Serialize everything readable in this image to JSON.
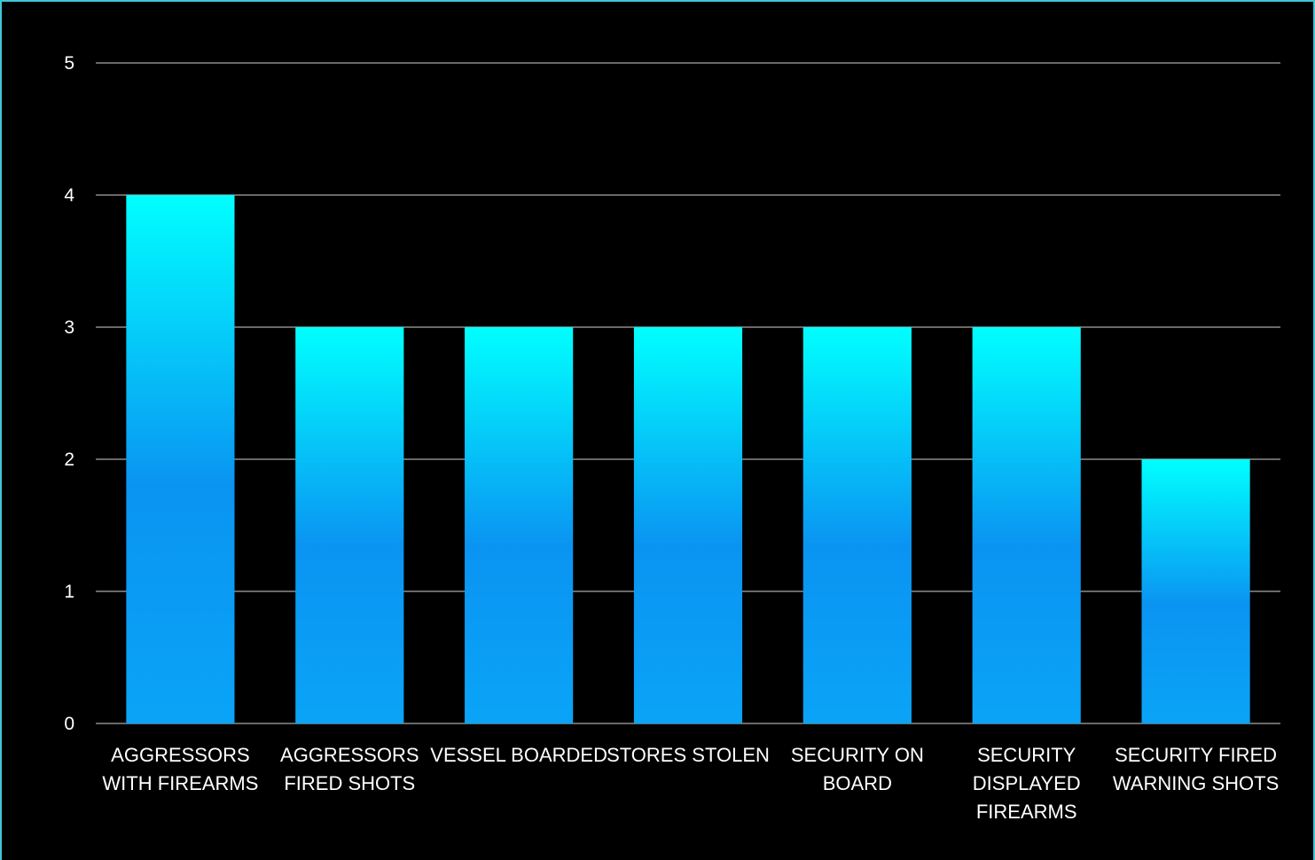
{
  "colors": {
    "background": "#000000",
    "frame": "#3fc6d6",
    "gridline": "#8c8c8c",
    "bar_top": "#00ffff",
    "bar_mid": "#0a94f2",
    "bar_bottom": "#0aa4f7",
    "text": "#ffffff"
  },
  "chart_data": {
    "type": "bar",
    "title": "",
    "xlabel": "",
    "ylabel": "",
    "ylim": [
      0,
      5
    ],
    "yticks": [
      0,
      1,
      2,
      3,
      4,
      5
    ],
    "grid": true,
    "legend": "none",
    "categories": [
      [
        "AGGRESSORS",
        "WITH FIREARMS"
      ],
      [
        "AGGRESSORS",
        "FIRED SHOTS"
      ],
      [
        "VESSEL BOARDED"
      ],
      [
        "STORES STOLEN"
      ],
      [
        "SECURITY ON",
        "BOARD"
      ],
      [
        "SECURITY",
        "DISPLAYED",
        "FIREARMS"
      ],
      [
        "SECURITY FIRED",
        "WARNING SHOTS"
      ]
    ],
    "values": [
      4,
      3,
      3,
      3,
      3,
      3,
      2
    ]
  }
}
